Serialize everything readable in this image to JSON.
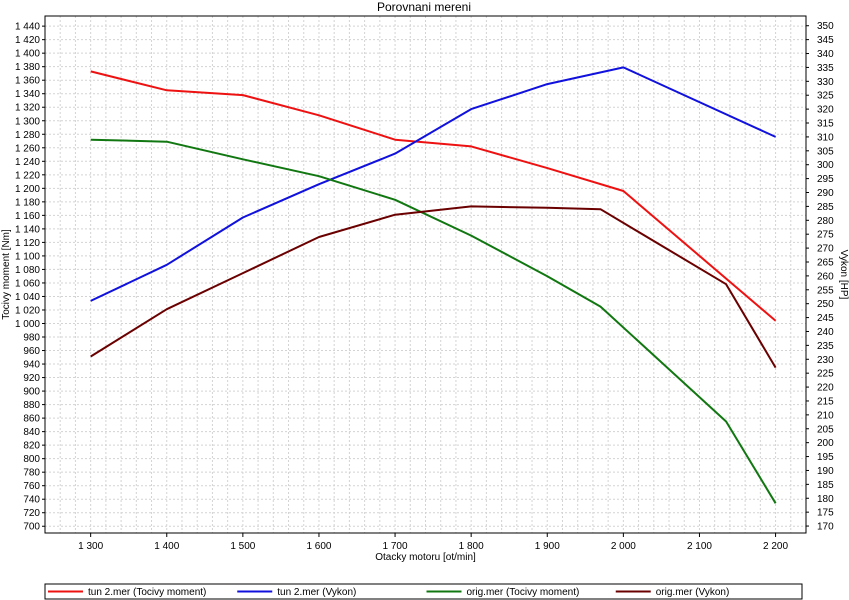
{
  "chart_data": {
    "type": "line",
    "title": "Porovnani mereni",
    "xlabel": "Otacky motoru [ot/min]",
    "ylabel": "Tocivy moment [Nm]",
    "y2label": "Vykon [HP]",
    "x_ticks": [
      "1 300",
      "1 400",
      "1 500",
      "1 600",
      "1 700",
      "1 800",
      "1 900",
      "2 000",
      "2 100",
      "2 200"
    ],
    "y_ticks": [
      "700",
      "720",
      "740",
      "760",
      "780",
      "800",
      "820",
      "840",
      "860",
      "880",
      "900",
      "920",
      "940",
      "960",
      "980",
      "1 000",
      "1 020",
      "1 040",
      "1 060",
      "1 080",
      "1 100",
      "1 120",
      "1 140",
      "1 160",
      "1 180",
      "1 200",
      "1 220",
      "1 240",
      "1 260",
      "1 280",
      "1 300",
      "1 320",
      "1 340",
      "1 360",
      "1 380",
      "1 400",
      "1 420",
      "1 440"
    ],
    "y2_ticks": [
      "170",
      "175",
      "180",
      "185",
      "190",
      "195",
      "200",
      "205",
      "210",
      "215",
      "220",
      "225",
      "230",
      "235",
      "240",
      "245",
      "250",
      "255",
      "260",
      "265",
      "270",
      "275",
      "280",
      "285",
      "290",
      "295",
      "300",
      "305",
      "310",
      "315",
      "320",
      "325",
      "330",
      "335",
      "340",
      "345",
      "350"
    ],
    "xlim": [
      1240,
      2240
    ],
    "ylim": [
      690,
      1455
    ],
    "y2lim": [
      167.5,
      353.5
    ],
    "grid": true,
    "legend_position": "bottom",
    "series": [
      {
        "name": "tun 2.mer  (Tocivy moment)",
        "axis": "left",
        "color": "#ee1111",
        "x": [
          1300,
          1400,
          1500,
          1600,
          1700,
          1800,
          1900,
          2000,
          2200
        ],
        "y": [
          1373,
          1345,
          1338,
          1308,
          1272,
          1262,
          1230,
          1196,
          1004
        ]
      },
      {
        "name": "tun 2.mer  (Vykon)",
        "axis": "right",
        "color": "#1111dd",
        "x": [
          1300,
          1400,
          1500,
          1600,
          1700,
          1800,
          1900,
          2000,
          2200
        ],
        "y": [
          251,
          264,
          281,
          293,
          304,
          320,
          329,
          335,
          310
        ]
      },
      {
        "name": "orig.mer  (Tocivy moment)",
        "axis": "left",
        "color": "#117711",
        "x": [
          1300,
          1400,
          1500,
          1600,
          1700,
          1800,
          1900,
          1970,
          2135,
          2200
        ],
        "y": [
          1272,
          1269,
          1243,
          1218,
          1183,
          1130,
          1070,
          1025,
          855,
          734
        ]
      },
      {
        "name": "orig.mer  (Vykon)",
        "axis": "right",
        "color": "#6b0000",
        "x": [
          1300,
          1400,
          1500,
          1600,
          1700,
          1800,
          1900,
          1970,
          2135,
          2200
        ],
        "y": [
          231,
          248,
          261,
          274,
          282,
          285,
          284.5,
          284,
          257,
          227
        ]
      }
    ]
  }
}
